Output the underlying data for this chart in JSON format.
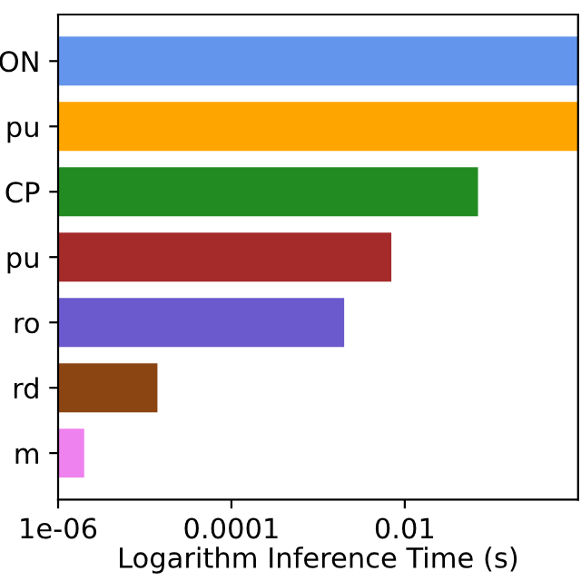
{
  "chart_data": {
    "type": "bar",
    "orientation": "horizontal",
    "log": "x",
    "categories": [
      "ON",
      "pu",
      "CP",
      "pu",
      "ro",
      "rd",
      "m"
    ],
    "values": [
      1,
      1,
      0.07,
      0.007,
      0.002,
      1.4e-05,
      2e-06
    ],
    "colors": [
      "#6495ed",
      "#ffa500",
      "#228b22",
      "#a52a2a",
      "#6a5acd",
      "#8b4513",
      "#ee82ee"
    ],
    "xlim": [
      1e-06,
      1
    ],
    "xticks": [
      {
        "value": 1e-06,
        "label": "1e-06"
      },
      {
        "value": 0.0001,
        "label": "0.0001"
      },
      {
        "value": 0.01,
        "label": "0.01"
      }
    ],
    "xlabel": "Logarithm Inference Time (s)",
    "grid": false
  }
}
